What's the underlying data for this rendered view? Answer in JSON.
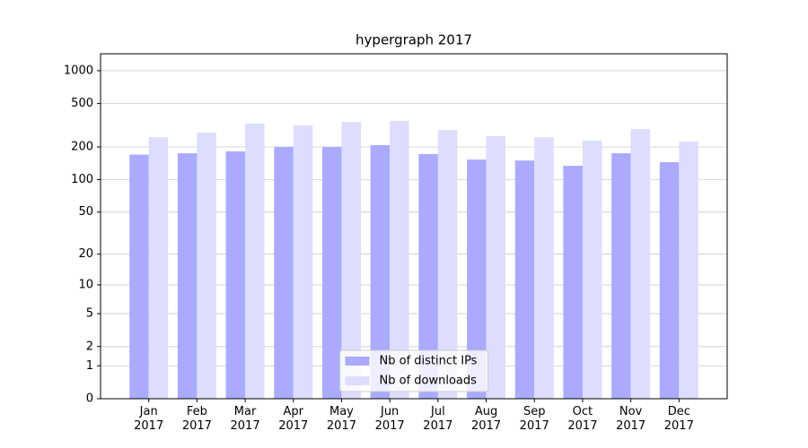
{
  "chart_data": {
    "type": "bar",
    "title": "hypergraph 2017",
    "categories": [
      "Jan\n2017",
      "Feb\n2017",
      "Mar\n2017",
      "Apr\n2017",
      "May\n2017",
      "Jun\n2017",
      "Jul\n2017",
      "Aug\n2017",
      "Sep\n2017",
      "Oct\n2017",
      "Nov\n2017",
      "Dec\n2017"
    ],
    "series": [
      {
        "name": "Nb of distinct IPs",
        "color": "#aaaaff",
        "values": [
          170,
          175,
          182,
          200,
          200,
          208,
          172,
          153,
          150,
          134,
          175,
          145
        ]
      },
      {
        "name": "Nb of downloads",
        "color": "#ddddff",
        "values": [
          246,
          271,
          327,
          315,
          340,
          347,
          287,
          251,
          246,
          229,
          292,
          224
        ]
      }
    ],
    "yscale": "log1p",
    "ylim": [
      0,
      1430
    ],
    "yticks": [
      0,
      1,
      2,
      5,
      10,
      20,
      50,
      100,
      200,
      500,
      1000
    ],
    "grid": true,
    "legend": "lower center"
  }
}
